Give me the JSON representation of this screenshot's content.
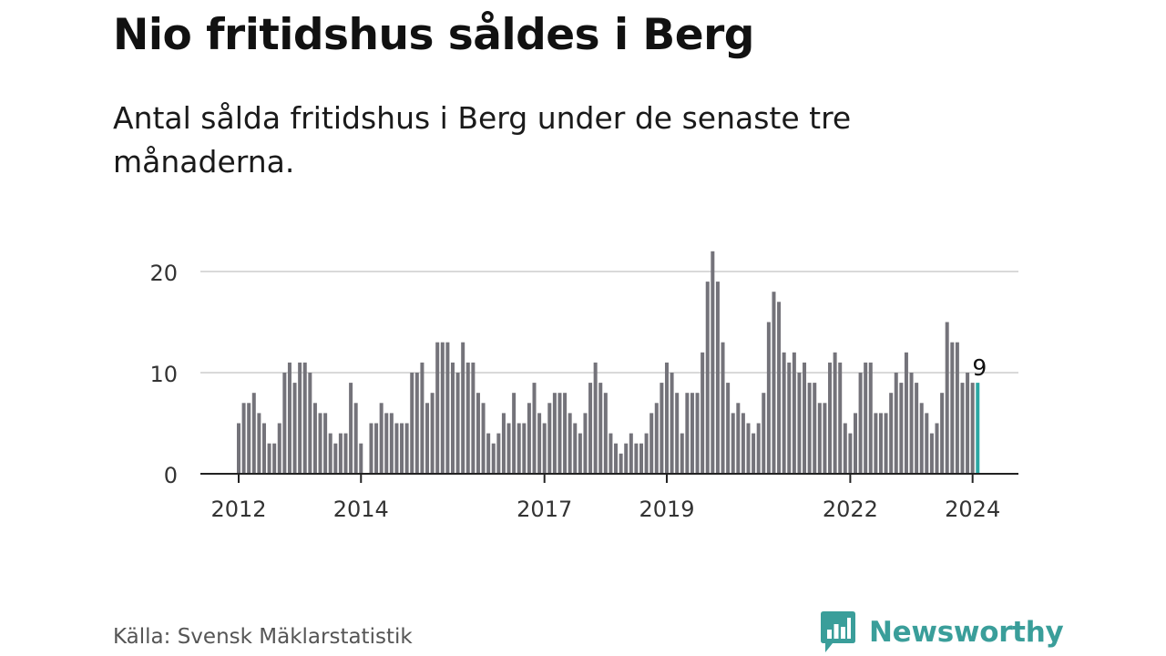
{
  "header": {
    "title": "Nio fritidshus såldes i Berg",
    "subtitle": "Antal sålda fritidshus i Berg under de senaste tre månaderna."
  },
  "footer": {
    "source": "Källa: Svensk Mäklarstatistik",
    "brand": "Newsworthy"
  },
  "colors": {
    "bar": "#74737a",
    "highlight": "#2ba8a4",
    "grid": "#d9d9d9",
    "axis": "#222222",
    "brand": "#3a9e9a"
  },
  "icons": {
    "logo": "newsworthy-bar-chart-speech-bubble-icon"
  },
  "chart_data": {
    "type": "bar",
    "x_ticks": [
      "2012",
      "2014",
      "2017",
      "2019",
      "2022",
      "2024"
    ],
    "y_ticks": [
      0,
      10,
      20
    ],
    "ylim": [
      0,
      23
    ],
    "grid": true,
    "highlight_label": "9",
    "series": [
      {
        "values": [
          5,
          7,
          7,
          8,
          6,
          5,
          3,
          3,
          5,
          10,
          11,
          9,
          11,
          11,
          10,
          7,
          6,
          6,
          4,
          3,
          4,
          4,
          9,
          7,
          3,
          0,
          5,
          5,
          7,
          6,
          6,
          5,
          5,
          5,
          10,
          10,
          11,
          7,
          8,
          13,
          13,
          13,
          11,
          10,
          13,
          11,
          11,
          8,
          7,
          4,
          3,
          4,
          6,
          5,
          8,
          5,
          5,
          7,
          9,
          6,
          5,
          7,
          8,
          8,
          8,
          6,
          5,
          4,
          6,
          9,
          11,
          9,
          8,
          4,
          3,
          2,
          3,
          4,
          3,
          3,
          4,
          6,
          7,
          9,
          11,
          10,
          8,
          4,
          8,
          8,
          8,
          12,
          19,
          22,
          19,
          13,
          9,
          6,
          7,
          6,
          5,
          4,
          5,
          8,
          15,
          18,
          17,
          12,
          11,
          12,
          10,
          11,
          9,
          9,
          7,
          7,
          11,
          12,
          11,
          5,
          4,
          6,
          10,
          11,
          11,
          6,
          6,
          6,
          8,
          10,
          9,
          12,
          10,
          9,
          7,
          6,
          4,
          5,
          8,
          15,
          13,
          13,
          9,
          10,
          9,
          9
        ]
      }
    ]
  }
}
